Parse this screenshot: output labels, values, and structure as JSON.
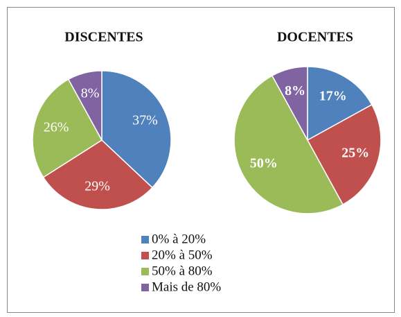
{
  "chart_data": [
    {
      "type": "pie",
      "title": "DISCENTES",
      "values": [
        37,
        29,
        26,
        8
      ],
      "value_labels": [
        "37%",
        "29%",
        "26%",
        "8%"
      ],
      "bold_labels": false
    },
    {
      "type": "pie",
      "title": "DOCENTES",
      "values": [
        17,
        25,
        50,
        8
      ],
      "value_labels": [
        "17%",
        "25%",
        "50%",
        "8%"
      ],
      "bold_labels": true
    }
  ],
  "legend": {
    "labels": [
      "0% à 20%",
      "20% à 50%",
      "50% à 80%",
      "Mais de 80%"
    ],
    "colors": [
      "#4f81bd",
      "#c0504d",
      "#9bbb59",
      "#8064a2"
    ]
  }
}
